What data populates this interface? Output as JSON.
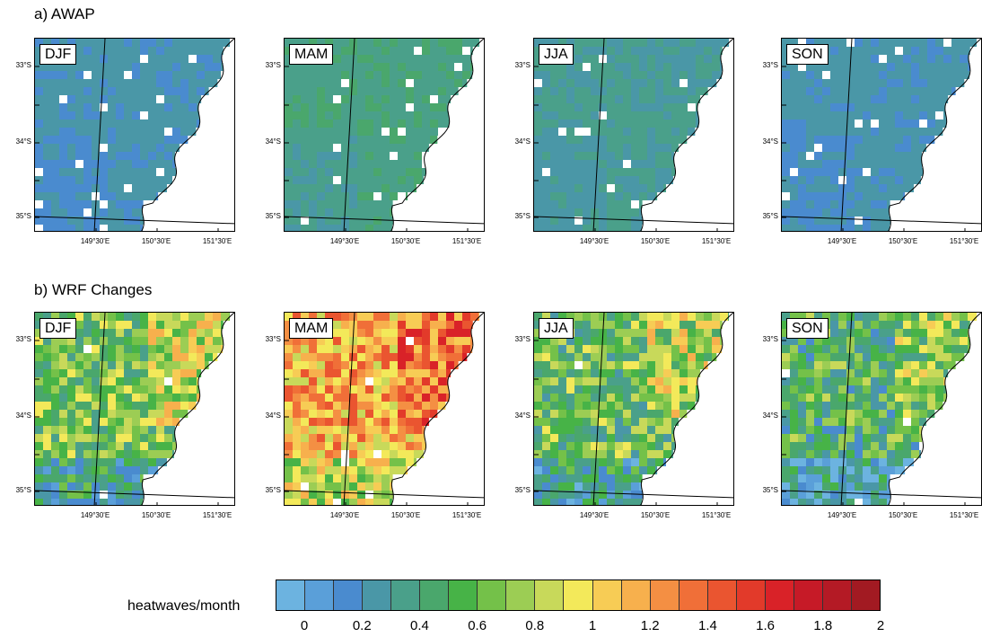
{
  "rows": [
    {
      "id": "awap",
      "title": "a) AWAP"
    },
    {
      "id": "wrf",
      "title": "b) WRF Changes"
    }
  ],
  "seasons": [
    "DJF",
    "MAM",
    "JJA",
    "SON"
  ],
  "axis": {
    "lat_labels": [
      "33°S",
      "34°S",
      "35°S"
    ],
    "lon_labels": [
      "149°30'E",
      "150°30'E",
      "151°30'E"
    ]
  },
  "colorbar": {
    "label": "heatwaves/month",
    "ticks": [
      "0",
      "0.2",
      "0.4",
      "0.6",
      "0.8",
      "1",
      "1.2",
      "1.4",
      "1.6",
      "1.8",
      "2"
    ],
    "colors": [
      "#6cb3e0",
      "#5a9fd9",
      "#4a8bcf",
      "#4a97a7",
      "#4aa08a",
      "#4aa76c",
      "#47b347",
      "#74c149",
      "#9ccd54",
      "#c8d95a",
      "#f3e95a",
      "#f7cc55",
      "#f7b04d",
      "#f48f43",
      "#f06f38",
      "#ea5530",
      "#e23a2a",
      "#d92228",
      "#c61a27",
      "#b41a25",
      "#a21a22"
    ]
  },
  "field_levels": {
    "awap": {
      "DJF": 0.28,
      "MAM": 0.42,
      "JJA": 0.36,
      "SON": 0.28
    },
    "wrf": {
      "DJF": 0.7,
      "MAM": 1.2,
      "JJA": 0.65,
      "SON": 0.55
    }
  }
}
